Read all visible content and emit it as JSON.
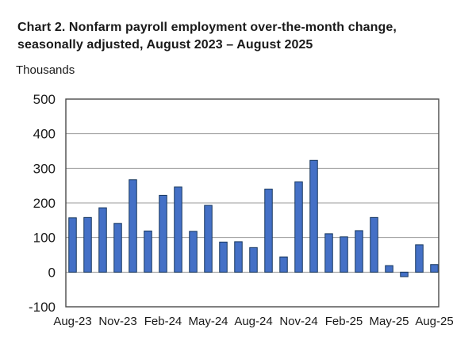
{
  "title": {
    "line1": "Chart 2. Nonfarm payroll employment over-the-month change,",
    "line2": "seasonally adjusted, August 2023 – August 2025"
  },
  "chart_data": {
    "type": "bar",
    "title": "Chart 2. Nonfarm payroll employment over-the-month change, seasonally adjusted, August 2023 – August 2025",
    "ylabel": "Thousands",
    "xlabel": "",
    "ylim": [
      -100,
      500
    ],
    "yticks": [
      -100,
      0,
      100,
      200,
      300,
      400,
      500
    ],
    "grid": true,
    "legend": "none",
    "categories": [
      "Aug-23",
      "Sep-23",
      "Oct-23",
      "Nov-23",
      "Dec-23",
      "Jan-24",
      "Feb-24",
      "Mar-24",
      "Apr-24",
      "May-24",
      "Jun-24",
      "Jul-24",
      "Aug-24",
      "Sep-24",
      "Oct-24",
      "Nov-24",
      "Dec-24",
      "Jan-25",
      "Feb-25",
      "Mar-25",
      "Apr-25",
      "May-25",
      "Jun-25",
      "Jul-25",
      "Aug-25"
    ],
    "values": [
      157,
      158,
      186,
      141,
      267,
      119,
      222,
      246,
      118,
      193,
      87,
      88,
      71,
      240,
      44,
      261,
      323,
      111,
      102,
      120,
      158,
      19,
      -13,
      79,
      22
    ],
    "xtick_labels_shown": [
      "Aug-23",
      "Nov-23",
      "Feb-24",
      "May-24",
      "Aug-24",
      "Nov-24",
      "Feb-25",
      "May-25",
      "Aug-25"
    ],
    "colors": {
      "bar_fill": "#4470C6",
      "bar_border": "#17375E",
      "gridline": "#9B9B9B",
      "plot_border": "#4A4A4A",
      "text": "#1a1a1a"
    }
  }
}
